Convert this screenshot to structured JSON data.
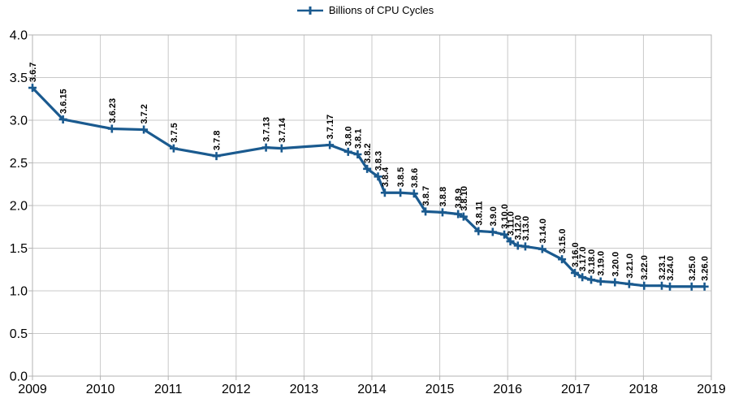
{
  "colors": {
    "series": "#1a5a8f",
    "grid": "#c9c9c9",
    "axis": "#b3b3b3",
    "text": "#000000",
    "background": "#ffffff"
  },
  "chart_data": {
    "type": "line",
    "title": "",
    "legend_position": "top-center",
    "grid": "both",
    "marker": "plus",
    "x_axis": {
      "range": [
        2009,
        2019
      ],
      "ticks": [
        "2009",
        "2010",
        "2011",
        "2012",
        "2013",
        "2014",
        "2015",
        "2016",
        "2017",
        "2018",
        "2019"
      ]
    },
    "y_axis": {
      "range": [
        0,
        4
      ],
      "ticks": [
        "0.0",
        "0.5",
        "1.0",
        "1.5",
        "2.0",
        "2.5",
        "3.0",
        "3.5",
        "4.0"
      ]
    },
    "series": [
      {
        "name": "Billions of CPU Cycles",
        "points": [
          {
            "label": "3.6.7",
            "x": 2009.0,
            "y": 3.38
          },
          {
            "label": "3.6.15",
            "x": 2009.45,
            "y": 3.01
          },
          {
            "label": "3.6.23",
            "x": 2010.17,
            "y": 2.9
          },
          {
            "label": "3.7.2",
            "x": 2010.64,
            "y": 2.89
          },
          {
            "label": "3.7.5",
            "x": 2011.08,
            "y": 2.67
          },
          {
            "label": "3.7.8",
            "x": 2011.71,
            "y": 2.58
          },
          {
            "label": "3.7.13",
            "x": 2012.44,
            "y": 2.68
          },
          {
            "label": "3.7.14",
            "x": 2012.67,
            "y": 2.67
          },
          {
            "label": "3.7.17",
            "x": 2013.38,
            "y": 2.71
          },
          {
            "label": "3.8.0",
            "x": 2013.65,
            "y": 2.63
          },
          {
            "label": "3.8.1",
            "x": 2013.79,
            "y": 2.6
          },
          {
            "label": "3.8.2",
            "x": 2013.93,
            "y": 2.43
          },
          {
            "label": "3.8.3",
            "x": 2014.09,
            "y": 2.34
          },
          {
            "label": "3.8.4",
            "x": 2014.19,
            "y": 2.15
          },
          {
            "label": "3.8.5",
            "x": 2014.42,
            "y": 2.15
          },
          {
            "label": "3.8.6",
            "x": 2014.62,
            "y": 2.14
          },
          {
            "label": "3.8.7",
            "x": 2014.79,
            "y": 1.93
          },
          {
            "label": "3.8.8",
            "x": 2015.04,
            "y": 1.92
          },
          {
            "label": "3.8.9",
            "x": 2015.27,
            "y": 1.9
          },
          {
            "label": "3.8.10",
            "x": 2015.35,
            "y": 1.87
          },
          {
            "label": "3.8.11",
            "x": 2015.57,
            "y": 1.7
          },
          {
            "label": "3.9.0",
            "x": 2015.78,
            "y": 1.69
          },
          {
            "label": "3.10.0",
            "x": 2015.95,
            "y": 1.66
          },
          {
            "label": "3.11.0",
            "x": 2016.04,
            "y": 1.58
          },
          {
            "label": "3.12.0",
            "x": 2016.15,
            "y": 1.53
          },
          {
            "label": "3.13.0",
            "x": 2016.26,
            "y": 1.52
          },
          {
            "label": "3.14.0",
            "x": 2016.51,
            "y": 1.49
          },
          {
            "label": "3.15.0",
            "x": 2016.8,
            "y": 1.37
          },
          {
            "label": "3.16.0",
            "x": 2016.99,
            "y": 1.21
          },
          {
            "label": "3.17.0",
            "x": 2017.1,
            "y": 1.16
          },
          {
            "label": "3.18.0",
            "x": 2017.23,
            "y": 1.13
          },
          {
            "label": "3.19.0",
            "x": 2017.37,
            "y": 1.11
          },
          {
            "label": "3.20.0",
            "x": 2017.58,
            "y": 1.1
          },
          {
            "label": "3.21.0",
            "x": 2017.79,
            "y": 1.08
          },
          {
            "label": "3.22.0",
            "x": 2018.01,
            "y": 1.06
          },
          {
            "label": "3.23.1",
            "x": 2018.27,
            "y": 1.06
          },
          {
            "label": "3.24.0",
            "x": 2018.39,
            "y": 1.05
          },
          {
            "label": "3.25.0",
            "x": 2018.71,
            "y": 1.05
          },
          {
            "label": "3.26.0",
            "x": 2018.9,
            "y": 1.05
          }
        ]
      }
    ]
  }
}
